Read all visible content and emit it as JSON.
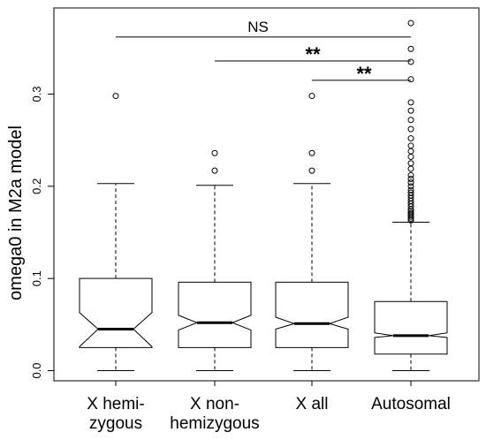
{
  "chart_data": {
    "type": "boxplot",
    "notched": true,
    "ylabel": "omega0 in M2a model",
    "ylim": [
      0.0,
      0.38
    ],
    "yticks": [
      {
        "value": 0.0,
        "label": "0.0"
      },
      {
        "value": 0.1,
        "label": "0.1"
      },
      {
        "value": 0.2,
        "label": "0.2"
      },
      {
        "value": 0.3,
        "label": "0.3"
      }
    ],
    "groups": [
      {
        "label_lines": [
          "X hemi-",
          "zygous"
        ],
        "whisker_low": 0.0,
        "q1": 0.025,
        "median": 0.045,
        "q3": 0.1,
        "whisker_high": 0.203,
        "notch_low": 0.026,
        "notch_high": 0.063,
        "outliers": [
          0.298
        ]
      },
      {
        "label_lines": [
          "X non-",
          "hemizygous"
        ],
        "whisker_low": 0.0,
        "q1": 0.025,
        "median": 0.052,
        "q3": 0.096,
        "whisker_high": 0.201,
        "notch_low": 0.044,
        "notch_high": 0.06,
        "outliers": [
          0.217,
          0.236
        ]
      },
      {
        "label_lines": [
          "X all"
        ],
        "whisker_low": 0.0,
        "q1": 0.025,
        "median": 0.051,
        "q3": 0.096,
        "whisker_high": 0.203,
        "notch_low": 0.045,
        "notch_high": 0.058,
        "outliers": [
          0.217,
          0.236,
          0.298
        ]
      },
      {
        "label_lines": [
          "Autosomal"
        ],
        "whisker_low": 0.0,
        "q1": 0.018,
        "median": 0.038,
        "q3": 0.075,
        "whisker_high": 0.161,
        "notch_low": 0.036,
        "notch_high": 0.041,
        "outliers": [
          0.163,
          0.165,
          0.167,
          0.169,
          0.171,
          0.173,
          0.175,
          0.178,
          0.181,
          0.184,
          0.187,
          0.19,
          0.193,
          0.196,
          0.2,
          0.204,
          0.208,
          0.212,
          0.219,
          0.225,
          0.232,
          0.238,
          0.244,
          0.252,
          0.262,
          0.272,
          0.282,
          0.291,
          0.316,
          0.335,
          0.349,
          0.377
        ]
      }
    ],
    "significance": [
      {
        "from_group": 0,
        "to_group": 3,
        "y": 0.362,
        "label": "NS"
      },
      {
        "from_group": 1,
        "to_group": 3,
        "y": 0.336,
        "label": "**"
      },
      {
        "from_group": 2,
        "to_group": 3,
        "y": 0.315,
        "label": "**"
      }
    ],
    "colors": {
      "stroke": "#000000",
      "median": "#000000",
      "background": "#ffffff"
    }
  }
}
